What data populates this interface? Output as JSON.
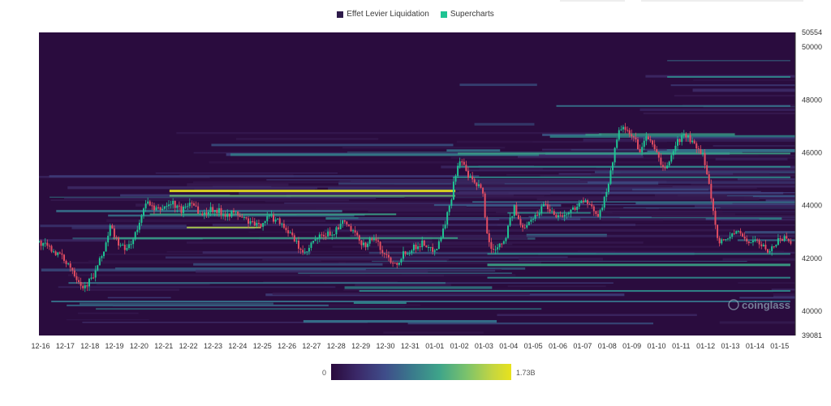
{
  "legend": {
    "items": [
      {
        "label": "Effet Levier Liquidation",
        "color": "#2d1a4a"
      },
      {
        "label": "Supercharts",
        "color": "#1fc493"
      }
    ]
  },
  "colorbar": {
    "min_label": "0",
    "max_label": "1.73B"
  },
  "watermark": "coinglass",
  "chart_data": {
    "type": "heatmap",
    "title": "",
    "x_labels": [
      "12-16",
      "12-17",
      "12-18",
      "12-19",
      "12-20",
      "12-21",
      "12-22",
      "12-23",
      "12-24",
      "12-25",
      "12-26",
      "12-27",
      "12-28",
      "12-29",
      "12-30",
      "12-31",
      "01-01",
      "01-02",
      "01-03",
      "01-04",
      "01-05",
      "01-06",
      "01-07",
      "01-08",
      "01-09",
      "01-10",
      "01-11",
      "01-12",
      "01-13",
      "01-14",
      "01-15"
    ],
    "y_ticks": [
      39081,
      40000,
      42000,
      44000,
      46000,
      48000,
      50000,
      50554
    ],
    "ylim": [
      39081,
      50554
    ],
    "colorscale": {
      "min": 0,
      "max": "1.73B"
    },
    "candles": {
      "colors": {
        "up": "#1fc493",
        "down": "#e24d62"
      },
      "close_path": [
        [
          0,
          42600
        ],
        [
          0.6,
          42300
        ],
        [
          1.2,
          41800
        ],
        [
          1.6,
          41200
        ],
        [
          1.8,
          40900
        ],
        [
          2.2,
          41300
        ],
        [
          2.6,
          42200
        ],
        [
          2.9,
          43200
        ],
        [
          3.2,
          42600
        ],
        [
          3.5,
          42300
        ],
        [
          3.8,
          42700
        ],
        [
          4.1,
          43300
        ],
        [
          4.3,
          44200
        ],
        [
          4.7,
          43800
        ],
        [
          5.0,
          43900
        ],
        [
          5.4,
          44100
        ],
        [
          5.8,
          43800
        ],
        [
          6.2,
          44200
        ],
        [
          6.6,
          43600
        ],
        [
          7.0,
          43900
        ],
        [
          7.5,
          43700
        ],
        [
          8.0,
          43700
        ],
        [
          8.5,
          43400
        ],
        [
          8.9,
          43200
        ],
        [
          9.3,
          43600
        ],
        [
          9.8,
          43400
        ],
        [
          10.2,
          42900
        ],
        [
          10.5,
          42500
        ],
        [
          10.8,
          42100
        ],
        [
          11.1,
          42600
        ],
        [
          11.4,
          42800
        ],
        [
          11.7,
          42900
        ],
        [
          12.0,
          43000
        ],
        [
          12.4,
          43400
        ],
        [
          12.8,
          42900
        ],
        [
          13.2,
          42500
        ],
        [
          13.6,
          42800
        ],
        [
          13.9,
          42300
        ],
        [
          14.2,
          42000
        ],
        [
          14.5,
          41800
        ],
        [
          14.8,
          42200
        ],
        [
          15.2,
          42400
        ],
        [
          15.6,
          42600
        ],
        [
          15.9,
          42300
        ],
        [
          16.2,
          42500
        ],
        [
          16.5,
          43400
        ],
        [
          16.7,
          44100
        ],
        [
          16.9,
          45200
        ],
        [
          17.1,
          45800
        ],
        [
          17.4,
          45100
        ],
        [
          17.7,
          44800
        ],
        [
          18.0,
          44600
        ],
        [
          18.2,
          42800
        ],
        [
          18.4,
          42300
        ],
        [
          18.6,
          42500
        ],
        [
          18.9,
          42700
        ],
        [
          19.1,
          43400
        ],
        [
          19.3,
          43900
        ],
        [
          19.6,
          43100
        ],
        [
          19.9,
          43500
        ],
        [
          20.2,
          43600
        ],
        [
          20.5,
          44100
        ],
        [
          20.8,
          43800
        ],
        [
          21.1,
          43600
        ],
        [
          21.5,
          43700
        ],
        [
          21.8,
          44000
        ],
        [
          22.1,
          44200
        ],
        [
          22.4,
          43900
        ],
        [
          22.7,
          43700
        ],
        [
          23.0,
          44300
        ],
        [
          23.2,
          45300
        ],
        [
          23.4,
          46200
        ],
        [
          23.6,
          47000
        ],
        [
          23.8,
          46800
        ],
        [
          24.1,
          46600
        ],
        [
          24.4,
          46100
        ],
        [
          24.7,
          46600
        ],
        [
          25.0,
          46200
        ],
        [
          25.3,
          45300
        ],
        [
          25.6,
          45700
        ],
        [
          25.9,
          46400
        ],
        [
          26.2,
          46700
        ],
        [
          26.5,
          46400
        ],
        [
          26.8,
          46000
        ],
        [
          27.0,
          45800
        ],
        [
          27.2,
          44800
        ],
        [
          27.4,
          43600
        ],
        [
          27.6,
          42600
        ],
        [
          27.9,
          42700
        ],
        [
          28.2,
          43000
        ],
        [
          28.5,
          42900
        ],
        [
          28.8,
          42600
        ],
        [
          29.1,
          42700
        ],
        [
          29.4,
          42400
        ],
        [
          29.7,
          42300
        ],
        [
          30.0,
          42700
        ],
        [
          30.3,
          42800
        ],
        [
          30.6,
          42600
        ]
      ]
    }
  }
}
